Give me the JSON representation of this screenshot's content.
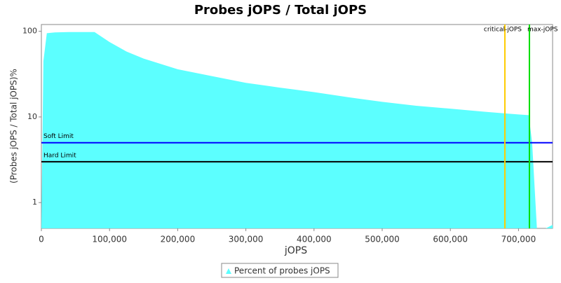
{
  "chart_data": {
    "type": "area",
    "title": "Probes jOPS / Total jOPS",
    "x_label": "jOPS",
    "y_label": "(Probes jOPS / Total jOPS)%",
    "log_y": true,
    "xlim": [
      0,
      750000
    ],
    "ylim": [
      0.5,
      120
    ],
    "xticks": [
      0,
      {
        "value": 100000,
        "label": "100,000"
      },
      {
        "value": 200000,
        "label": "200,000"
      },
      {
        "value": 300000,
        "label": "300,000"
      },
      {
        "value": 400000,
        "label": "400,000"
      },
      {
        "value": 500000,
        "label": "500,000"
      },
      {
        "value": 600000,
        "label": "600,000"
      },
      {
        "value": 700000,
        "label": "700,000"
      }
    ],
    "yticks": [
      1,
      10,
      100
    ],
    "x": [
      0,
      3000,
      8000,
      20000,
      40000,
      60000,
      78000,
      100000,
      125000,
      150000,
      200000,
      250000,
      300000,
      350000,
      400000,
      450000,
      500000,
      550000,
      600000,
      650000,
      680000,
      700000,
      715000,
      720000,
      727000,
      740000,
      750000
    ],
    "series": [
      {
        "name": "Percent of probes jOPS",
        "color": "#5cffff",
        "values": [
          0.5,
          45,
          95,
          97,
          98,
          98,
          98,
          75,
          58,
          48,
          36,
          30,
          25,
          22,
          19.5,
          17,
          15,
          13.5,
          12.5,
          11.5,
          11,
          10.7,
          10.5,
          5,
          0.5,
          0.5,
          0.55
        ]
      }
    ],
    "horizontal_lines": [
      {
        "label": "Soft Limit",
        "value": 5,
        "color": "#0000ff"
      },
      {
        "label": "Hard Limit",
        "value": 3,
        "color": "#000000"
      }
    ],
    "vertical_lines": [
      {
        "label": "critical-jOPS",
        "value": 680000,
        "color": "#ffcc00"
      },
      {
        "label": "max-jOPS",
        "value": 716000,
        "color": "#00dd00"
      }
    ]
  }
}
